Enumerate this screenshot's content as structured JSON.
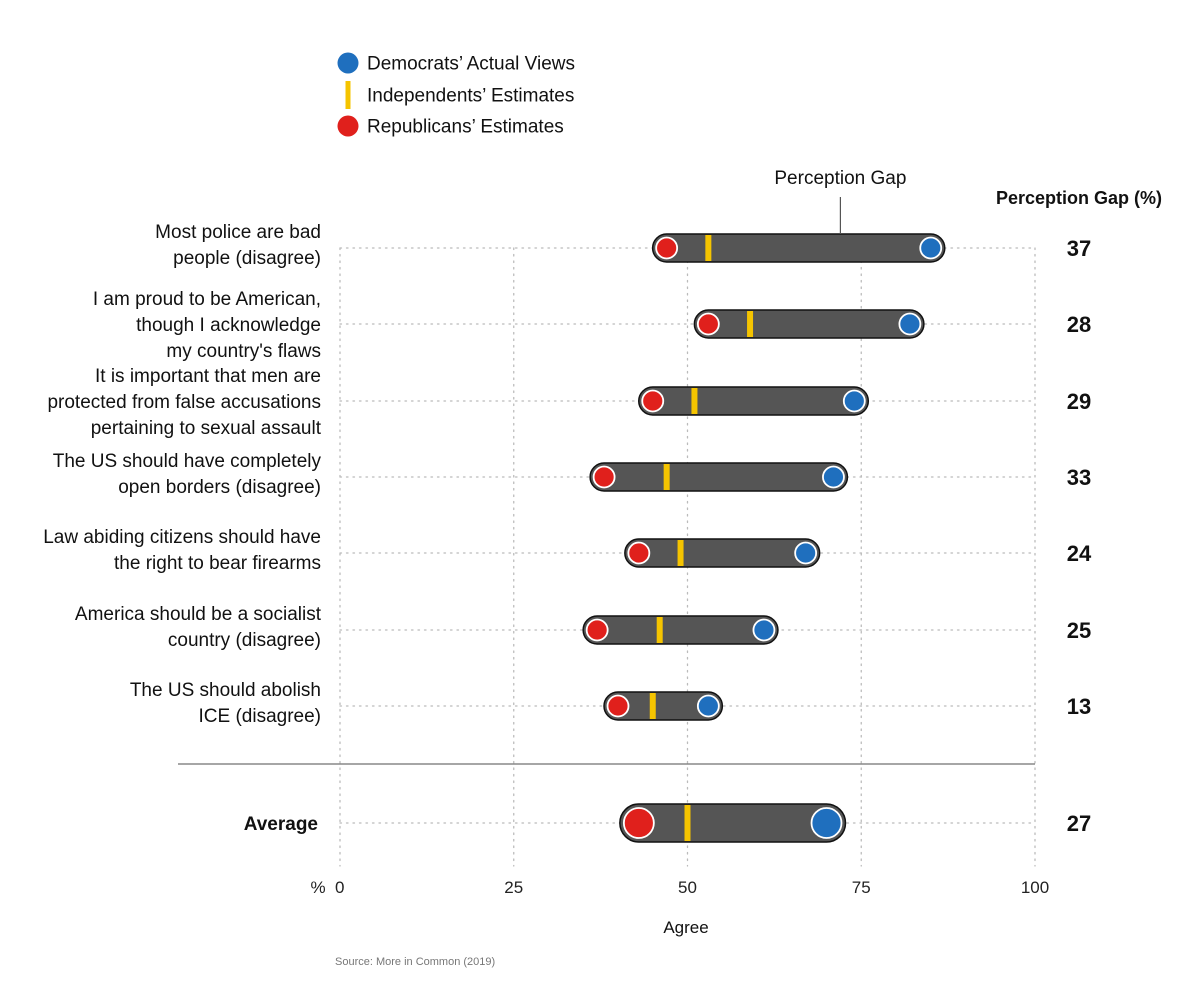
{
  "chart_data": {
    "type": "dumbbell",
    "xlabel": "Agree",
    "x_unit_prefix": "%",
    "xlim": [
      0,
      100
    ],
    "xticks": [
      0,
      25,
      50,
      75,
      100
    ],
    "legend": [
      {
        "key": "dem",
        "label": "Democrats’ Actual Views",
        "color": "#1f6fbe",
        "marker": "circle"
      },
      {
        "key": "ind",
        "label": "Independents’ Estimates",
        "color": "#f5c400",
        "marker": "bar"
      },
      {
        "key": "rep",
        "label": "Republicans’ Estimates",
        "color": "#e0201c",
        "marker": "circle"
      }
    ],
    "annotation": "Perception Gap",
    "gap_header": "Perception Gap (%)",
    "rows": [
      {
        "lines": [
          "Most police are bad",
          "people (disagree)"
        ],
        "rep": 47,
        "ind": 53,
        "dem": 85,
        "gap": "37"
      },
      {
        "lines": [
          "I am proud to be American,",
          "though I acknowledge",
          "my country's flaws"
        ],
        "rep": 53,
        "ind": 59,
        "dem": 82,
        "gap": "28"
      },
      {
        "lines": [
          "It is important that men are",
          "protected from false accusations",
          "pertaining to sexual assault"
        ],
        "rep": 45,
        "ind": 51,
        "dem": 74,
        "gap": "29"
      },
      {
        "lines": [
          "The US should have completely",
          "open borders (disagree)"
        ],
        "rep": 38,
        "ind": 47,
        "dem": 71,
        "gap": "33"
      },
      {
        "lines": [
          "Law abiding citizens should have",
          "the right to bear firearms"
        ],
        "rep": 43,
        "ind": 49,
        "dem": 67,
        "gap": "24"
      },
      {
        "lines": [
          "America should be a socialist",
          "country (disagree)"
        ],
        "rep": 37,
        "ind": 46,
        "dem": 61,
        "gap": "25"
      },
      {
        "lines": [
          "The US should abolish",
          "ICE (disagree)"
        ],
        "rep": 40,
        "ind": 45,
        "dem": 53,
        "gap": "13"
      }
    ],
    "average": {
      "label": "Average",
      "rep": 43,
      "ind": 50,
      "dem": 70,
      "gap": "27"
    },
    "colors": {
      "bar": "#555555",
      "grid": "#bbbbbb",
      "separator": "#888888"
    }
  },
  "source": "Source: More in Common (2019)"
}
